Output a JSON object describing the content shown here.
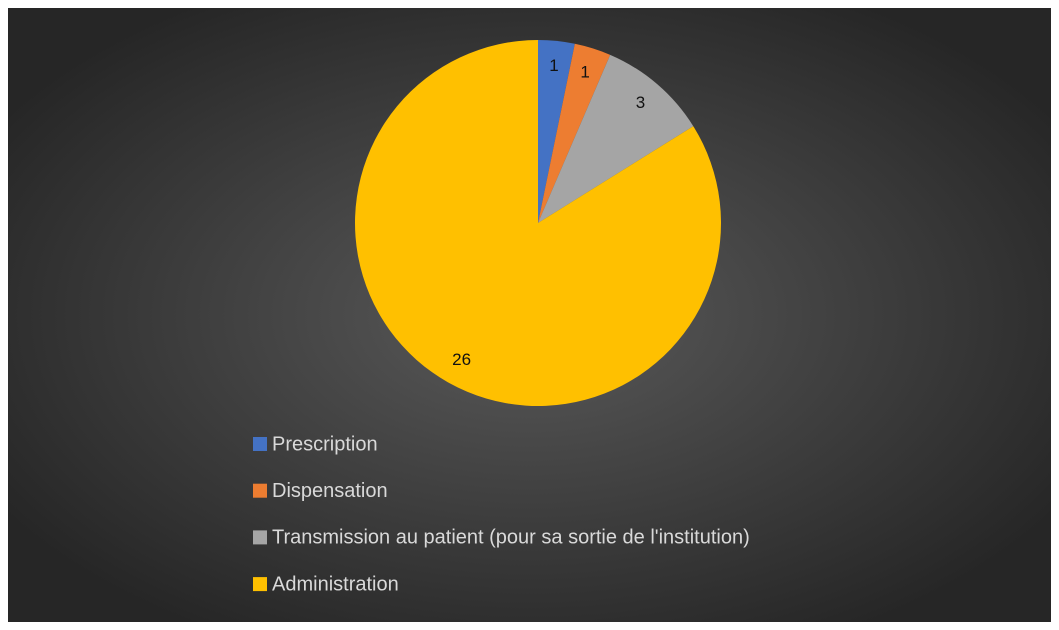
{
  "chart_data": {
    "type": "pie",
    "categories": [
      "Prescription",
      "Dispensation",
      "Transmission au patient (pour sa sortie de l'institution)",
      "Administration"
    ],
    "values": [
      1,
      1,
      3,
      26
    ],
    "colors": [
      "#4472c4",
      "#ed7d31",
      "#a5a5a5",
      "#ffc000"
    ],
    "legend": "bottom"
  }
}
